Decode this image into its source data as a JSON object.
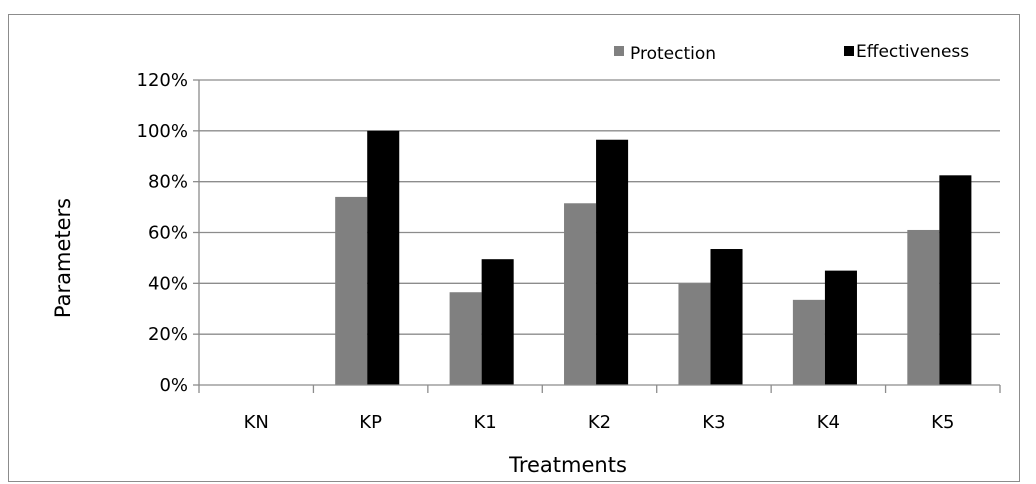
{
  "chart_data": {
    "type": "bar",
    "title": "",
    "xlabel": "Treatments",
    "ylabel": "Parameters",
    "categories": [
      "KN",
      "KP",
      "K1",
      "K2",
      "K3",
      "K4",
      "K5"
    ],
    "series": [
      {
        "name": "Protection",
        "color": "#808080",
        "values": [
          0,
          74,
          36.5,
          71.5,
          40,
          33.5,
          61
        ]
      },
      {
        "name": "Effectiveness",
        "color": "#000000",
        "values": [
          0,
          100,
          49.5,
          96.5,
          53.5,
          45,
          82.5
        ]
      }
    ],
    "ylim": [
      0,
      120
    ],
    "yticks": [
      "0%",
      "20%",
      "40%",
      "60%",
      "80%",
      "100%",
      "120%"
    ],
    "value_unit": "%",
    "grid": true,
    "legend_position": "top-right"
  }
}
